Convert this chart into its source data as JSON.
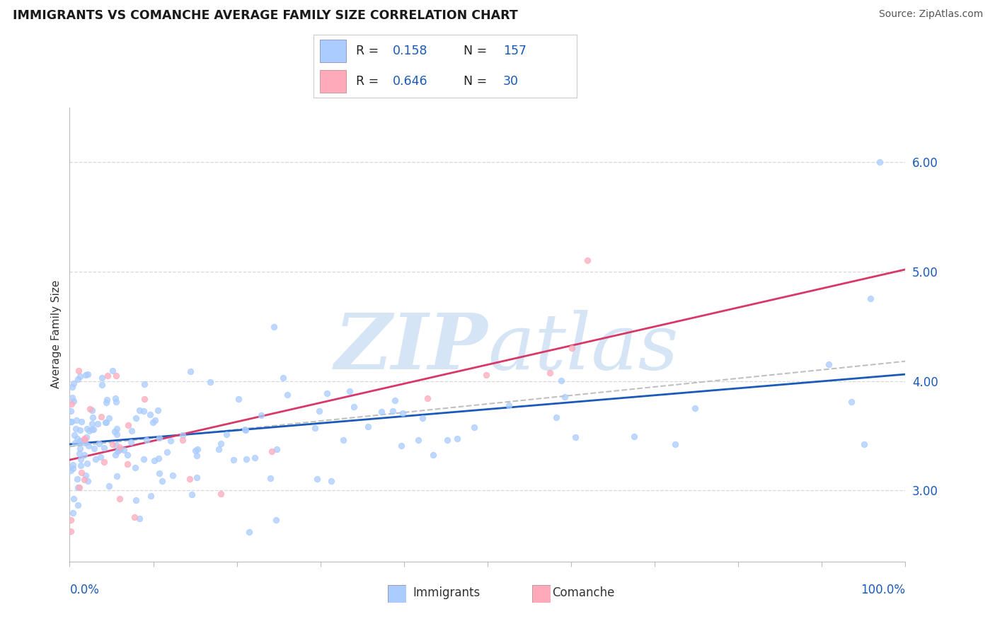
{
  "title": "IMMIGRANTS VS COMANCHE AVERAGE FAMILY SIZE CORRELATION CHART",
  "source": "Source: ZipAtlas.com",
  "ylabel": "Average Family Size",
  "yticks": [
    3.0,
    4.0,
    5.0,
    6.0
  ],
  "ytick_labels": [
    "3.00",
    "4.00",
    "5.00",
    "6.00"
  ],
  "xlim": [
    0.0,
    1.0
  ],
  "ylim": [
    2.35,
    6.5
  ],
  "immigrants_R": 0.158,
  "immigrants_N": 157,
  "comanche_R": 0.646,
  "comanche_N": 30,
  "immigrants_color": "#aaccff",
  "comanche_color": "#ffaabb",
  "immigrants_line_color": "#1a5ab8",
  "comanche_line_color": "#d83868",
  "trend_line_color": "#c0c0c0",
  "background_color": "#ffffff",
  "title_color": "#1a1a1a",
  "source_color": "#555555",
  "axis_label_color": "#1a5ab8",
  "grid_color": "#d8d8d8",
  "watermark_text1": "ZIP",
  "watermark_text2": "atlas",
  "watermark_color": "#d5e5f5",
  "legend_text_color": "#1a5ab8",
  "legend_label_color": "#222222",
  "imm_label": "Immigrants",
  "com_label": "Comanche"
}
